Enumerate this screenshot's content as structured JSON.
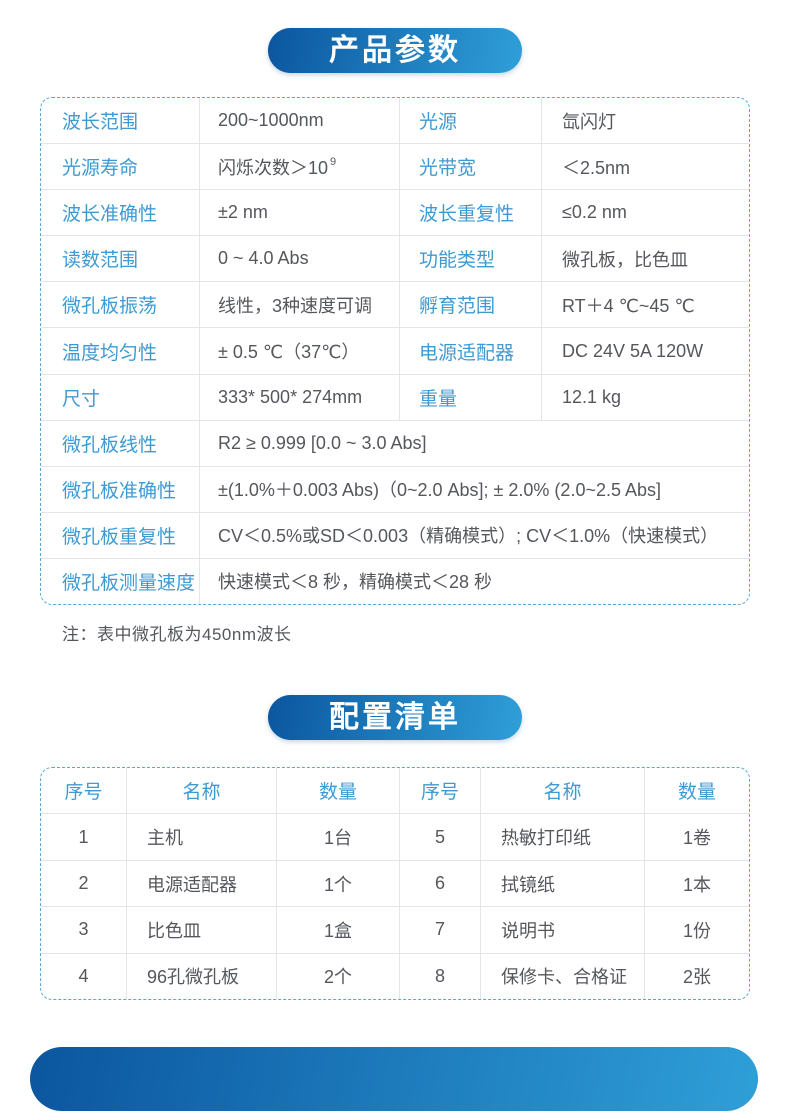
{
  "colors": {
    "accent_blue": "#3f9ad2",
    "banner_grad_start": "#0b569f",
    "banner_grad_end": "#2f9fd8",
    "text_dark": "#54575c",
    "grid_line": "#e2e6ea",
    "dashed_border": "#58a8d6"
  },
  "section_params": {
    "title": "产品参数",
    "rows4": [
      {
        "l1": "波长范围",
        "v1": "200~1000nm",
        "l2": "光源",
        "v2": "氙闪灯"
      },
      {
        "l1": "光源寿命",
        "v1": {
          "text": "闪烁次数＞10",
          "sup": "9"
        },
        "l2": "光带宽",
        "v2": "＜2.5nm"
      },
      {
        "l1": "波长准确性",
        "v1": "±2 nm",
        "l2": "波长重复性",
        "v2": "≤0.2 nm"
      },
      {
        "l1": "读数范围",
        "v1": "0 ~ 4.0 Abs",
        "l2": "功能类型",
        "v2": "微孔板，比色皿"
      },
      {
        "l1": "微孔板振荡",
        "v1": "线性，3种速度可调",
        "l2": "孵育范围",
        "v2": "RT＋4 ℃~45 ℃"
      },
      {
        "l1": "温度均匀性",
        "v1": "± 0.5 ℃（37℃）",
        "l2": "电源适配器",
        "v2": "DC 24V 5A 120W"
      },
      {
        "l1": "尺寸",
        "v1": "333* 500* 274mm",
        "l2": "重量",
        "v2": "12.1 kg"
      }
    ],
    "rows2": [
      {
        "l": "微孔板线性",
        "v": "R2 ≥ 0.999 [0.0 ~ 3.0 Abs]"
      },
      {
        "l": "微孔板准确性",
        "v": "±(1.0%＋0.003 Abs)（0~2.0 Abs]; ± 2.0% (2.0~2.5 Abs]"
      },
      {
        "l": "微孔板重复性",
        "v": "CV＜0.5%或SD＜0.003（精确模式）; CV＜1.0%（快速模式）"
      },
      {
        "l": "微孔板测量速度",
        "v": "快速模式＜8 秒，精确模式＜28 秒"
      }
    ],
    "note": "注：表中微孔板为450nm波长"
  },
  "section_config": {
    "title": "配置清单",
    "headers": [
      "序号",
      "名称",
      "数量",
      "序号",
      "名称",
      "数量"
    ],
    "rows": [
      [
        "1",
        "主机",
        "1台",
        "5",
        "热敏打印纸",
        "1卷"
      ],
      [
        "2",
        "电源适配器",
        "1个",
        "6",
        "拭镜纸",
        "1本"
      ],
      [
        "3",
        "比色皿",
        "1盒",
        "7",
        "说明书",
        "1份"
      ],
      [
        "4",
        "96孔微孔板",
        "2个",
        "8",
        "保修卡、合格证",
        "2张"
      ]
    ]
  }
}
